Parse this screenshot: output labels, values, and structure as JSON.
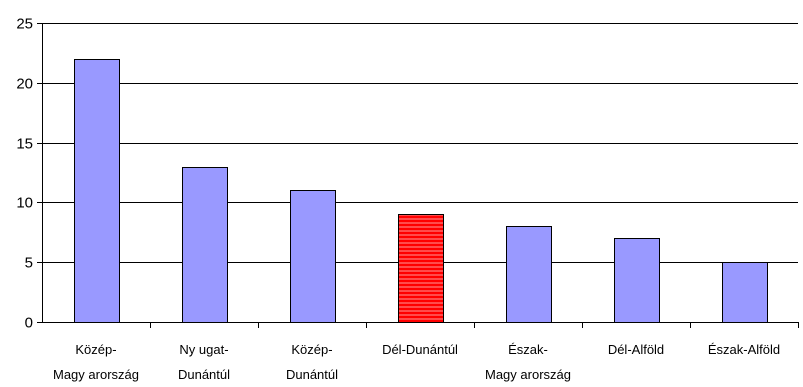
{
  "chart_data": {
    "type": "bar",
    "title": "",
    "xlabel": "",
    "ylabel": "",
    "ylim": [
      0,
      25
    ],
    "yticks": [
      0,
      5,
      10,
      15,
      20,
      25
    ],
    "grid": true,
    "categories": [
      [
        "Közép-",
        "Magy arország"
      ],
      [
        "Ny ugat-",
        "Dunántúl"
      ],
      [
        "Közép-",
        "Dunántúl"
      ],
      [
        "Dél-Dunántúl"
      ],
      [
        "Észak-",
        "Magy arország"
      ],
      [
        "Dél-Alföld"
      ],
      [
        "Észak-Alföld"
      ]
    ],
    "values": [
      22,
      13,
      11,
      9,
      8,
      7,
      5
    ],
    "highlight_index": 3,
    "colors": {
      "bar": "#9999ff",
      "bar_stroke": "#000000",
      "highlight": "#ff0000",
      "highlight_stripe": "#ff9999",
      "grid": "#000000",
      "axis": "#000000"
    }
  }
}
